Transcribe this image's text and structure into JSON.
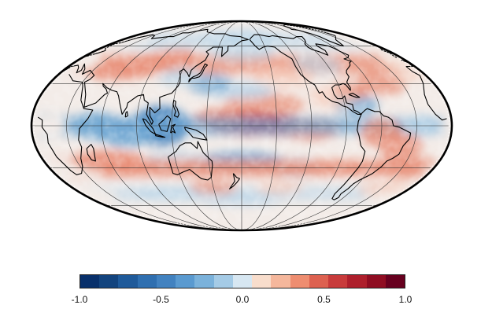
{
  "colormap": {
    "bins": [
      "#08306b",
      "#13447e",
      "#1f5a9a",
      "#2f6fb0",
      "#4282c0",
      "#5a9ad0",
      "#7bb2db",
      "#a5cbe6",
      "#d7e7f2",
      "#f8ddcc",
      "#f5b79c",
      "#ee8d70",
      "#dd6150",
      "#c83b3b",
      "#ae1f2c",
      "#8f0d22",
      "#67001f"
    ],
    "ticks": [
      {
        "value": -1.0,
        "label": "-1.0"
      },
      {
        "value": -0.5,
        "label": "-0.5"
      },
      {
        "value": 0.0,
        "label": "0.0"
      },
      {
        "value": 0.5,
        "label": "0.5"
      },
      {
        "value": 1.0,
        "label": "1.0"
      }
    ],
    "range": [
      -1.0,
      1.0
    ]
  },
  "map": {
    "projection": "mollweide",
    "center_longitude": 180,
    "graticule_step_deg": 30,
    "field_colors": {
      "strong_positive": "#c3303a",
      "positive": "#e88a72",
      "weak_positive": "#f6c7b4",
      "neutral": "#f3ece8",
      "weak_negative": "#b9d5ea",
      "negative": "#6fa7d3",
      "strong_negative": "#3f7fbd"
    },
    "coastline_color": "#000000",
    "graticule_color": "#333333"
  }
}
